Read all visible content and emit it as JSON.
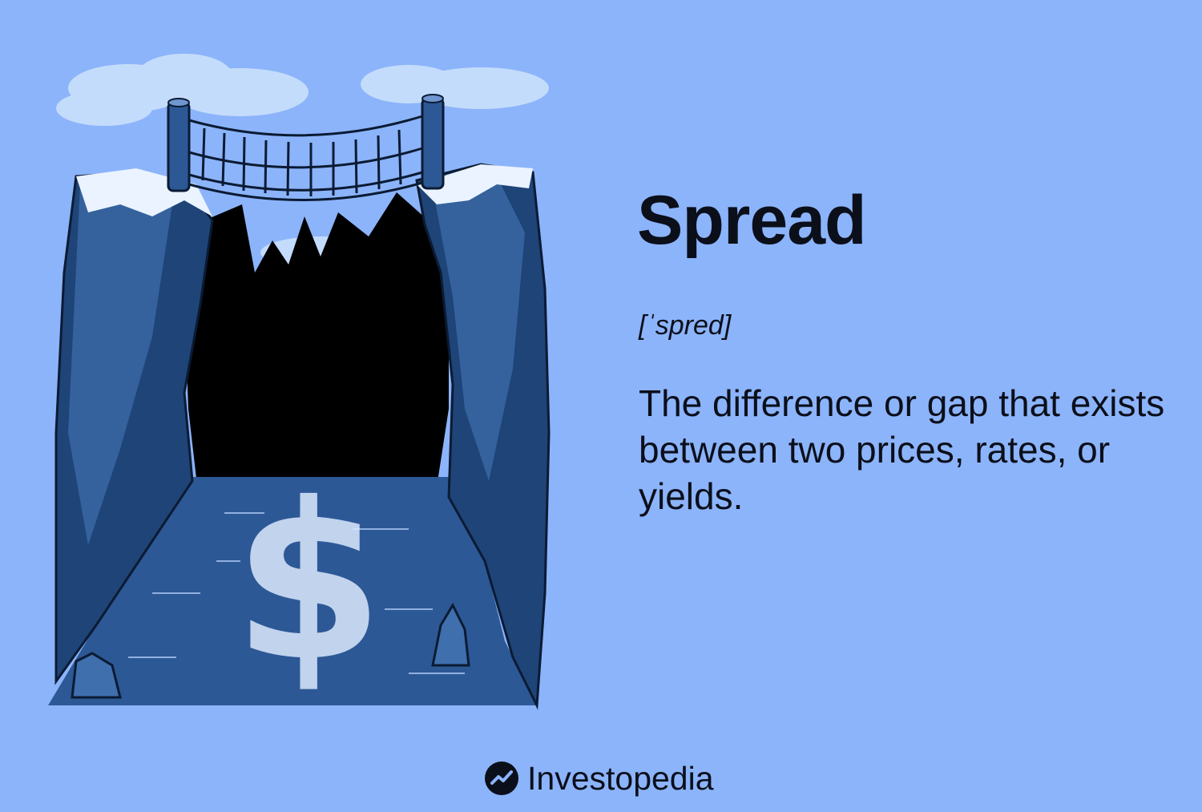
{
  "term": {
    "title": "Spread",
    "pronunciation": "[ˈspred]",
    "definition": "The difference or gap that exists between two prices, rates, or yields."
  },
  "brand": {
    "name": "Investopedia",
    "logo_icon": "investopedia-logo-icon"
  },
  "illustration": {
    "icon": "canyon-rope-bridge-illustration",
    "symbol": "$"
  },
  "colors": {
    "background": "#8cb4fb",
    "text": "#0b0f1a",
    "cliff_dark": "#1e4478",
    "cliff_light": "#3f6fad",
    "water": "#2d5896"
  }
}
